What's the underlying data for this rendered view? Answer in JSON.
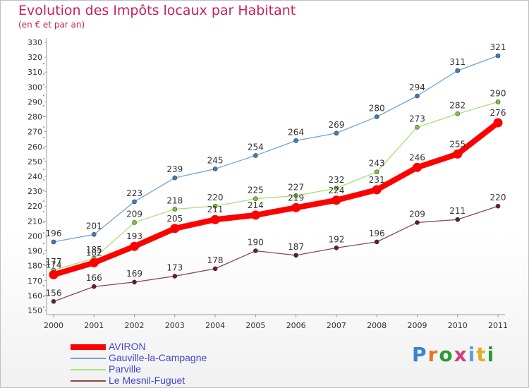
{
  "chart_data": {
    "type": "line",
    "title": "Evolution des Impôts locaux par Habitant",
    "subtitle": "(en € et par an)",
    "x": [
      "2000",
      "2001",
      "2002",
      "2003",
      "2004",
      "2005",
      "2006",
      "2007",
      "2008",
      "2009",
      "2010",
      "2011"
    ],
    "ylim": [
      150,
      330
    ],
    "yticks": [
      150,
      160,
      170,
      180,
      190,
      200,
      210,
      220,
      230,
      240,
      250,
      260,
      270,
      280,
      290,
      300,
      310,
      320,
      330
    ],
    "grid": false,
    "legend_position": "bottom-left",
    "series": [
      {
        "name": "Gauville-la-Campagne",
        "color": "#6fa3d8",
        "marker_color": "#3a7fc0",
        "values": [
          196,
          201,
          223,
          239,
          245,
          254,
          264,
          269,
          280,
          294,
          311,
          321
        ]
      },
      {
        "name": "Parville",
        "color": "#a8e070",
        "marker_color": "#7cc83a",
        "values": [
          177,
          185,
          209,
          218,
          220,
          225,
          227,
          232,
          243,
          273,
          282,
          290
        ]
      },
      {
        "name": "Le Mesnil-Fuguet",
        "color": "#8a4a4a",
        "marker_color": "#6a1e1e",
        "values": [
          156,
          166,
          169,
          173,
          178,
          190,
          187,
          192,
          196,
          209,
          211,
          220
        ]
      },
      {
        "name": "AVIRON",
        "color": "#ff0000",
        "marker_color": "#ff0000",
        "values": [
          174,
          182,
          193,
          205,
          211,
          214,
          219,
          224,
          231,
          246,
          255,
          276
        ]
      }
    ]
  },
  "legend": [
    {
      "name": "AVIRON",
      "color": "#ff0000"
    },
    {
      "name": "Gauville-la-Campagne",
      "color": "#6fa3d8"
    },
    {
      "name": "Parville",
      "color": "#a8e070"
    },
    {
      "name": "Le Mesnil-Fuguet",
      "color": "#8a4a4a"
    }
  ],
  "brand": {
    "letters": [
      "P",
      "r",
      "o",
      "x",
      "i",
      "t",
      "i"
    ]
  }
}
